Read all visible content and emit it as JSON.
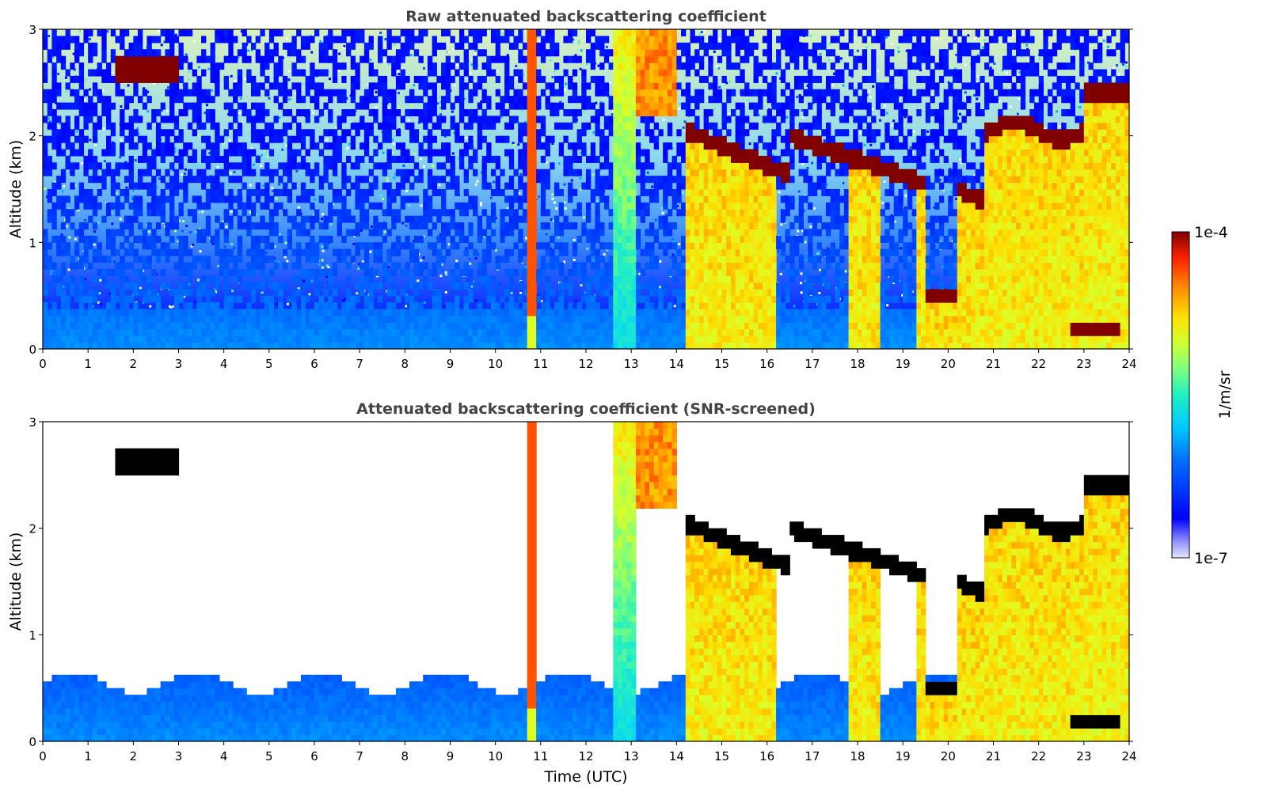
{
  "chart_data": [
    {
      "type": "heatmap",
      "title": "Raw attenuated backscattering coefficient",
      "xlabel": "",
      "ylabel": "Altitude (km)",
      "xlim": [
        0,
        24
      ],
      "ylim": [
        0,
        3
      ],
      "x_ticks": [
        "0",
        "1",
        "2",
        "3",
        "4",
        "5",
        "6",
        "7",
        "8",
        "9",
        "10",
        "11",
        "12",
        "13",
        "14",
        "15",
        "16",
        "17",
        "18",
        "19",
        "20",
        "21",
        "22",
        "23",
        "24"
      ],
      "y_ticks": [
        "0",
        "1",
        "2",
        "3"
      ],
      "cloud_layers": [
        {
          "t_start": 1.6,
          "t_end": 3.0,
          "alt_km": 2.62
        },
        {
          "t_start": 14.2,
          "t_end": 16.5,
          "alt_km": 1.9
        },
        {
          "t_start": 16.5,
          "t_end": 19.5,
          "alt_km": 1.7
        },
        {
          "t_start": 19.5,
          "t_end": 20.8,
          "alt_km": 1.4
        },
        {
          "t_start": 20.8,
          "t_end": 23.0,
          "alt_km": 2.1
        },
        {
          "t_start": 22.7,
          "t_end": 23.8,
          "alt_km": 0.2
        }
      ]
    },
    {
      "type": "heatmap",
      "title": "Attenuated backscattering coefficient (SNR-screened)",
      "xlabel": "Time (UTC)",
      "ylabel": "Altitude (km)",
      "xlim": [
        0,
        24
      ],
      "ylim": [
        0,
        3
      ],
      "x_ticks": [
        "0",
        "1",
        "2",
        "3",
        "4",
        "5",
        "6",
        "7",
        "8",
        "9",
        "10",
        "11",
        "12",
        "13",
        "14",
        "15",
        "16",
        "17",
        "18",
        "19",
        "20",
        "21",
        "22",
        "23",
        "24"
      ],
      "y_ticks": [
        "0",
        "1",
        "2",
        "3"
      ]
    }
  ],
  "colorbar": {
    "max_label": "1e-4",
    "min_label": "1e-7",
    "unit_label": "1/m/sr",
    "colormap": "jet"
  }
}
